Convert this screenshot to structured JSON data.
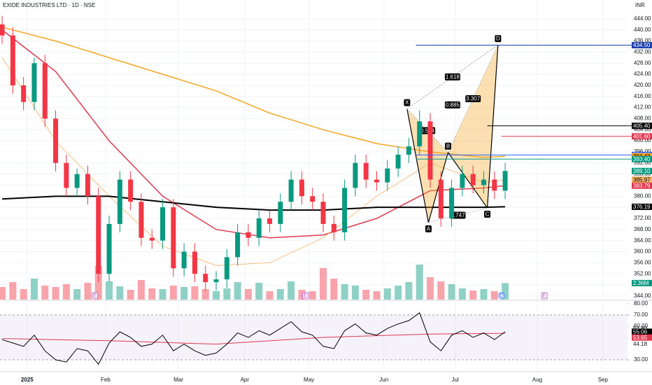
{
  "chart_data": {
    "type": "candlestick",
    "title": "EXIDE INDUSTRIES LTD · 1D · NSE",
    "currency": "INR",
    "x": [
      0,
      3,
      6,
      9,
      12,
      15,
      18,
      21,
      24,
      27,
      30,
      33,
      36,
      39,
      42,
      45,
      48,
      51,
      54,
      57,
      60,
      63,
      66,
      69,
      72,
      75,
      78,
      81,
      84,
      87,
      90,
      93,
      96,
      99,
      102,
      105,
      108,
      111,
      114,
      117,
      120,
      123,
      126,
      129,
      132,
      135,
      138,
      141
    ],
    "open": [
      442,
      438,
      420,
      414,
      428,
      408,
      392,
      383,
      388,
      380,
      352,
      370,
      386,
      378,
      365,
      364,
      376,
      354,
      360,
      352,
      349,
      350,
      358,
      367,
      365,
      372,
      370,
      378,
      386,
      380,
      378,
      370,
      367,
      383,
      392,
      386,
      385,
      390,
      395,
      398,
      407,
      386,
      372,
      383,
      388,
      384,
      386,
      382
    ],
    "high": [
      445,
      441,
      423,
      430,
      431,
      411,
      395,
      390,
      391,
      383,
      373,
      389,
      389,
      381,
      368,
      379,
      379,
      363,
      363,
      355,
      353,
      361,
      370,
      370,
      375,
      375,
      381,
      389,
      389,
      383,
      381,
      373,
      386,
      395,
      395,
      389,
      393,
      398,
      401,
      411,
      410,
      389,
      386,
      391,
      391,
      389,
      389,
      392
    ],
    "low": [
      435,
      417,
      411,
      411,
      405,
      389,
      380,
      380,
      377,
      349,
      349,
      367,
      375,
      362,
      361,
      361,
      351,
      351,
      349,
      346,
      346,
      347,
      355,
      362,
      362,
      367,
      367,
      375,
      377,
      375,
      367,
      364,
      364,
      380,
      383,
      382,
      382,
      387,
      392,
      395,
      383,
      369,
      369,
      380,
      381,
      381,
      379,
      379
    ],
    "close": [
      438,
      420,
      414,
      428,
      408,
      392,
      383,
      388,
      380,
      352,
      370,
      386,
      378,
      365,
      364,
      376,
      354,
      360,
      352,
      349,
      350,
      358,
      367,
      365,
      372,
      370,
      378,
      386,
      380,
      378,
      370,
      367,
      383,
      392,
      386,
      385,
      390,
      395,
      398,
      407,
      386,
      372,
      383,
      388,
      384,
      386,
      382,
      389.1
    ],
    "up_color": "#089981",
    "down_color": "#f23645",
    "xlim": [
      -0.6,
      175.3
    ],
    "xticks": [
      {
        "value": 7,
        "label": "2025"
      },
      {
        "value": 29,
        "label": "Feb"
      },
      {
        "value": 49.4,
        "label": "Mar"
      },
      {
        "value": 68,
        "label": "Apr"
      },
      {
        "value": 86,
        "label": "May"
      },
      {
        "value": 107,
        "label": "Jun"
      },
      {
        "value": 127,
        "label": "Jul"
      },
      {
        "value": 150,
        "label": "Aug"
      },
      {
        "value": 168.4,
        "label": "Sep"
      }
    ],
    "ylim": [
      342.7,
      450.8
    ],
    "yticks": [
      {
        "value": 344,
        "label": "344.00"
      },
      {
        "value": 348,
        "label": "348.00"
      },
      {
        "value": 352,
        "label": "352.00"
      },
      {
        "value": 356,
        "label": "356.00"
      },
      {
        "value": 360,
        "label": "360.00"
      },
      {
        "value": 364,
        "label": "364.00"
      },
      {
        "value": 368,
        "label": "368.00"
      },
      {
        "value": 372,
        "label": "372.00"
      },
      {
        "value": 376,
        "label": "376.00"
      },
      {
        "value": 380,
        "label": "380.00"
      },
      {
        "value": 384,
        "label": "384.00"
      },
      {
        "value": 388,
        "label": "388.00"
      },
      {
        "value": 392,
        "label": "392.00"
      },
      {
        "value": 396,
        "label": "396.00"
      },
      {
        "value": 400,
        "label": "400.00"
      },
      {
        "value": 404,
        "label": "404.00"
      },
      {
        "value": 408,
        "label": "408.00"
      },
      {
        "value": 412,
        "label": "412.00"
      },
      {
        "value": 416,
        "label": "416.00"
      },
      {
        "value": 420,
        "label": "420.00"
      },
      {
        "value": 424,
        "label": "424.00"
      },
      {
        "value": 428,
        "label": "428.00"
      },
      {
        "value": 432,
        "label": "432.00"
      },
      {
        "value": 436,
        "label": "436.00"
      },
      {
        "value": 440,
        "label": "440.00"
      },
      {
        "value": 444,
        "label": "444.00"
      }
    ],
    "moving_averages": [
      {
        "color": "#f5a623",
        "width": 1.5,
        "x": [
          0,
          15,
          30,
          45,
          60,
          75,
          90,
          105,
          120,
          135,
          141
        ],
        "values": [
          441,
          436,
          430,
          424,
          418,
          410,
          404,
          399,
          396,
          394,
          394.43
        ]
      },
      {
        "color": "#e0394f",
        "width": 1.5,
        "x": [
          0,
          15,
          30,
          45,
          60,
          75,
          90,
          105,
          120,
          135,
          141
        ],
        "values": [
          440,
          425,
          400,
          380,
          368,
          365,
          366,
          372,
          382,
          383,
          383.79
        ]
      },
      {
        "color": "#f7b267",
        "width": 0.8,
        "x": [
          0,
          15,
          30,
          45,
          60,
          75,
          90,
          105,
          120,
          135,
          141
        ],
        "values": [
          430,
          400,
          380,
          362,
          355,
          356,
          365,
          380,
          392,
          385,
          385.97
        ]
      },
      {
        "color": "#000000",
        "width": 2,
        "x": [
          0,
          15,
          30,
          45,
          60,
          75,
          90,
          105,
          120,
          135,
          141
        ],
        "values": [
          379,
          380,
          380,
          378,
          376,
          375,
          375,
          376,
          376,
          376,
          376.19
        ]
      }
    ],
    "price_labels": [
      {
        "value": 434.5,
        "label": "434.50",
        "color": "#1e40af",
        "line_from": 116
      },
      {
        "value": 405.4,
        "label": "405.40",
        "color": "#000000",
        "line_from": 136
      },
      {
        "value": 401.6,
        "label": "401.60",
        "color": "#e0394f",
        "line_from": 140
      },
      {
        "value": 394.9,
        "label": "394.90",
        "color": "#2962ff",
        "line_from": 116
      },
      {
        "value": 394.43,
        "label": "394.43",
        "color": "#f5a623"
      },
      {
        "value": 393.4,
        "label": "393.40",
        "color": "#089981",
        "line_from": 116
      },
      {
        "value": 389.1,
        "label": "389.10",
        "color": "#089981"
      },
      {
        "value": 385.97,
        "label": "385.97",
        "color": "#f7b267"
      },
      {
        "value": 383.79,
        "label": "383.79",
        "color": "#e0394f"
      },
      {
        "value": 376.19,
        "label": "376.19",
        "color": "#000000"
      }
    ],
    "pattern": {
      "fill": "#f5a623",
      "points": [
        {
          "label": "X",
          "x": 113.5,
          "value": 411.5
        },
        {
          "label": "A",
          "x": 119.5,
          "value": 370.5
        },
        {
          "label": "B",
          "x": 125,
          "value": 395.8
        },
        {
          "label": "C",
          "x": 136,
          "value": 375.8
        },
        {
          "label": "D",
          "x": 139,
          "value": 434.6
        }
      ],
      "ratios": [
        {
          "value": 0.594,
          "between": [
            0,
            2
          ]
        },
        {
          "value": 0.885,
          "between": [
            0,
            4
          ]
        },
        {
          "value": 1.618,
          "between": [
            0,
            4
          ]
        },
        {
          "value": 3.307,
          "between": [
            2,
            4
          ]
        },
        {
          "value": 0.747,
          "between": [
            1,
            3
          ]
        }
      ]
    },
    "volume": {
      "values": [
        1.8,
        2.5,
        1.5,
        3.0,
        2.0,
        1.8,
        2.2,
        1.5,
        2.4,
        4.8,
        2.6,
        1.9,
        1.4,
        2.8,
        1.6,
        1.5,
        2.0,
        1.8,
        1.9,
        1.5,
        1.2,
        1.6,
        2.5,
        1.5,
        2.4,
        1.2,
        1.5,
        2.6,
        1.4,
        1.2,
        4.5,
        3.0,
        2.2,
        2.0,
        1.4,
        1.2,
        1.6,
        2.0,
        2.5,
        5.0,
        3.2,
        2.6,
        2.2,
        1.6,
        1.3,
        1.5,
        1.2,
        2.36
      ],
      "ylim": [
        0,
        10
      ],
      "last_label": {
        "value": 2.36,
        "label": "2.36M"
      }
    },
    "events": [
      {
        "x": 26,
        "label": "E"
      },
      {
        "x": 85,
        "label": "E"
      },
      {
        "x": 152,
        "label": "E"
      },
      {
        "x": 140,
        "label": "D"
      }
    ],
    "rsi": {
      "values": [
        48,
        45,
        42,
        52,
        38,
        30,
        28,
        40,
        38,
        26,
        45,
        55,
        50,
        42,
        44,
        52,
        38,
        44,
        38,
        34,
        36,
        44,
        54,
        50,
        56,
        52,
        58,
        64,
        55,
        52,
        42,
        40,
        56,
        62,
        54,
        52,
        58,
        62,
        65,
        72,
        46,
        38,
        52,
        56,
        50,
        54,
        48,
        55.06
      ],
      "color": "#000000",
      "ylim": [
        20,
        82.5
      ],
      "yticks": [
        {
          "value": 80,
          "label": "80.00"
        },
        {
          "value": 70,
          "label": "70.00"
        },
        {
          "value": 60,
          "label": "60.00"
        },
        {
          "value": 30,
          "label": "30.00"
        }
      ],
      "bands": [
        70,
        30
      ],
      "ma": {
        "color": "#e0394f",
        "x": [
          0,
          30,
          60,
          90,
          120,
          141
        ],
        "values": [
          49,
          47,
          44,
          50,
          53,
          53.65
        ]
      },
      "labels": [
        {
          "value": 55.06,
          "label": "55.06",
          "color": "#000000"
        },
        {
          "value": 54.8,
          "label": "54.80",
          "color": "#9e9e9e"
        },
        {
          "value": 53.65,
          "label": "53.65",
          "color": "#e0394f"
        },
        {
          "value": 44.18,
          "label": "44.18",
          "color": "#9e9e9e"
        }
      ]
    }
  }
}
